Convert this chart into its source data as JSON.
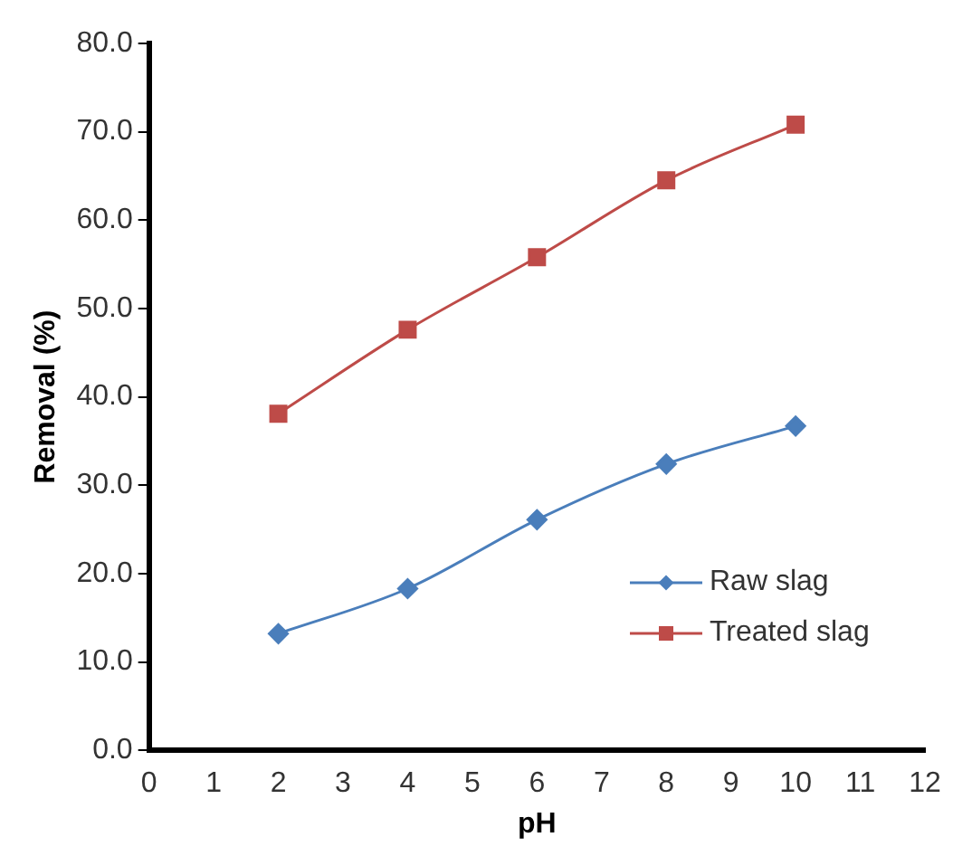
{
  "chart_data": {
    "type": "line",
    "xlabel": "pH",
    "ylabel": "Removal (%)",
    "x": [
      2,
      4,
      6,
      8,
      10
    ],
    "series": [
      {
        "name": "Raw slag",
        "color": "#4a7ebb",
        "marker": "diamond",
        "values": [
          13.2,
          18.3,
          26.1,
          32.4,
          36.7
        ]
      },
      {
        "name": "Treated slag",
        "color": "#be4b48",
        "marker": "square",
        "values": [
          38.1,
          47.6,
          55.8,
          64.5,
          70.8
        ]
      }
    ],
    "xlim": [
      0,
      12
    ],
    "xticks": [
      0,
      1,
      2,
      3,
      4,
      5,
      6,
      7,
      8,
      9,
      10,
      11,
      12
    ],
    "ylim": [
      0,
      80
    ],
    "yticks": [
      {
        "value": 0,
        "label": "0.0"
      },
      {
        "value": 10,
        "label": "10.0"
      },
      {
        "value": 20,
        "label": "20.0"
      },
      {
        "value": 30,
        "label": "30.0"
      },
      {
        "value": 40,
        "label": "40.0"
      },
      {
        "value": 50,
        "label": "50.0"
      },
      {
        "value": 60,
        "label": "60.0"
      },
      {
        "value": 70,
        "label": "70.0"
      },
      {
        "value": 80,
        "label": "80.0"
      }
    ],
    "grid": false,
    "legend": "bottom right"
  }
}
